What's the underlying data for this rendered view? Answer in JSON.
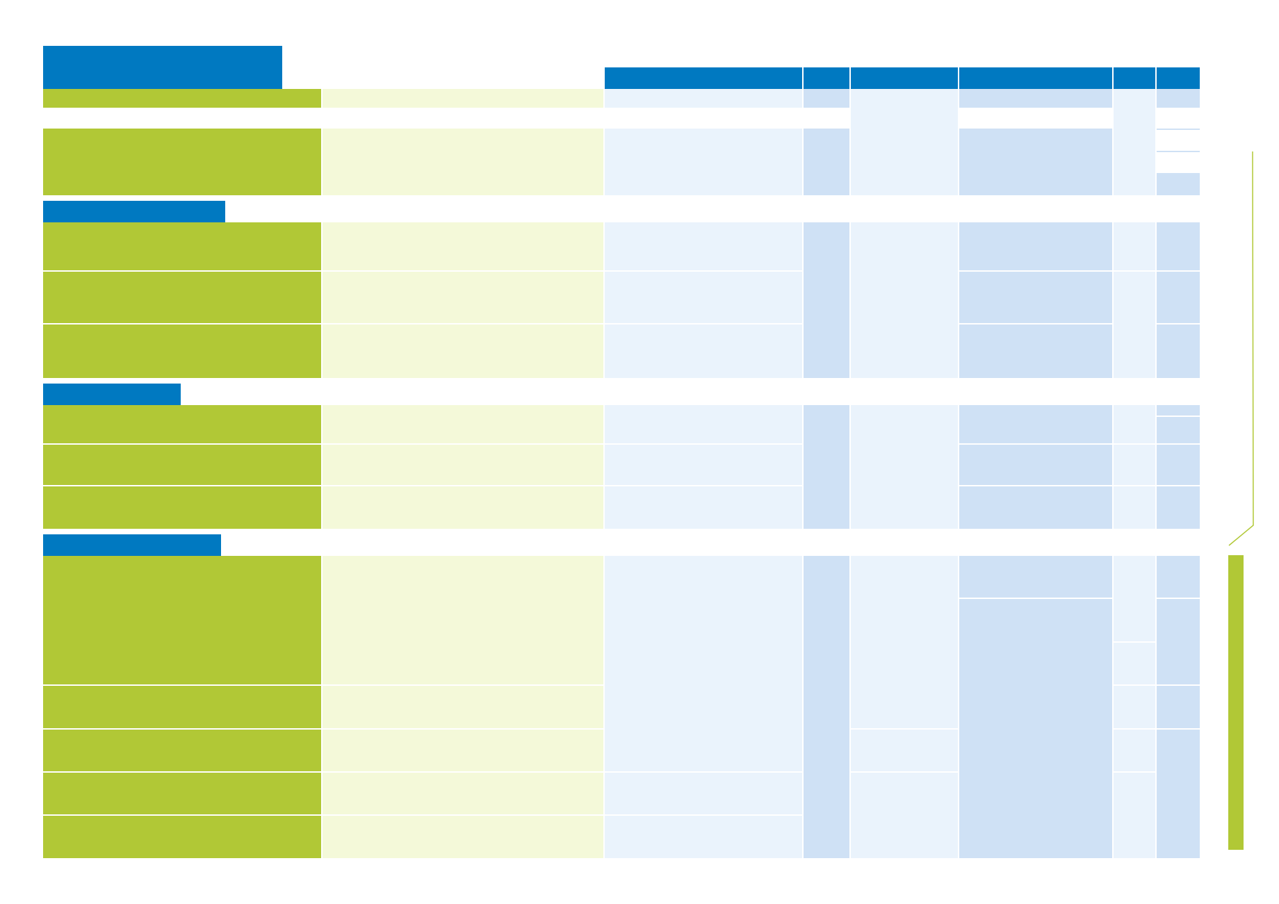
{
  "document": {
    "sections": [
      {
        "id": "section-1",
        "title": ""
      },
      {
        "id": "section-2",
        "title": ""
      },
      {
        "id": "section-3",
        "title": ""
      },
      {
        "id": "section-4",
        "title": ""
      }
    ],
    "column_headers": [
      "",
      "",
      "",
      "",
      "",
      ""
    ]
  },
  "colors": {
    "header_blue": "#0079c1",
    "green": "#b1c836",
    "light_green": "#f4f9d9",
    "light_blue": "#eaf3fc",
    "medium_blue": "#cfe1f5"
  }
}
